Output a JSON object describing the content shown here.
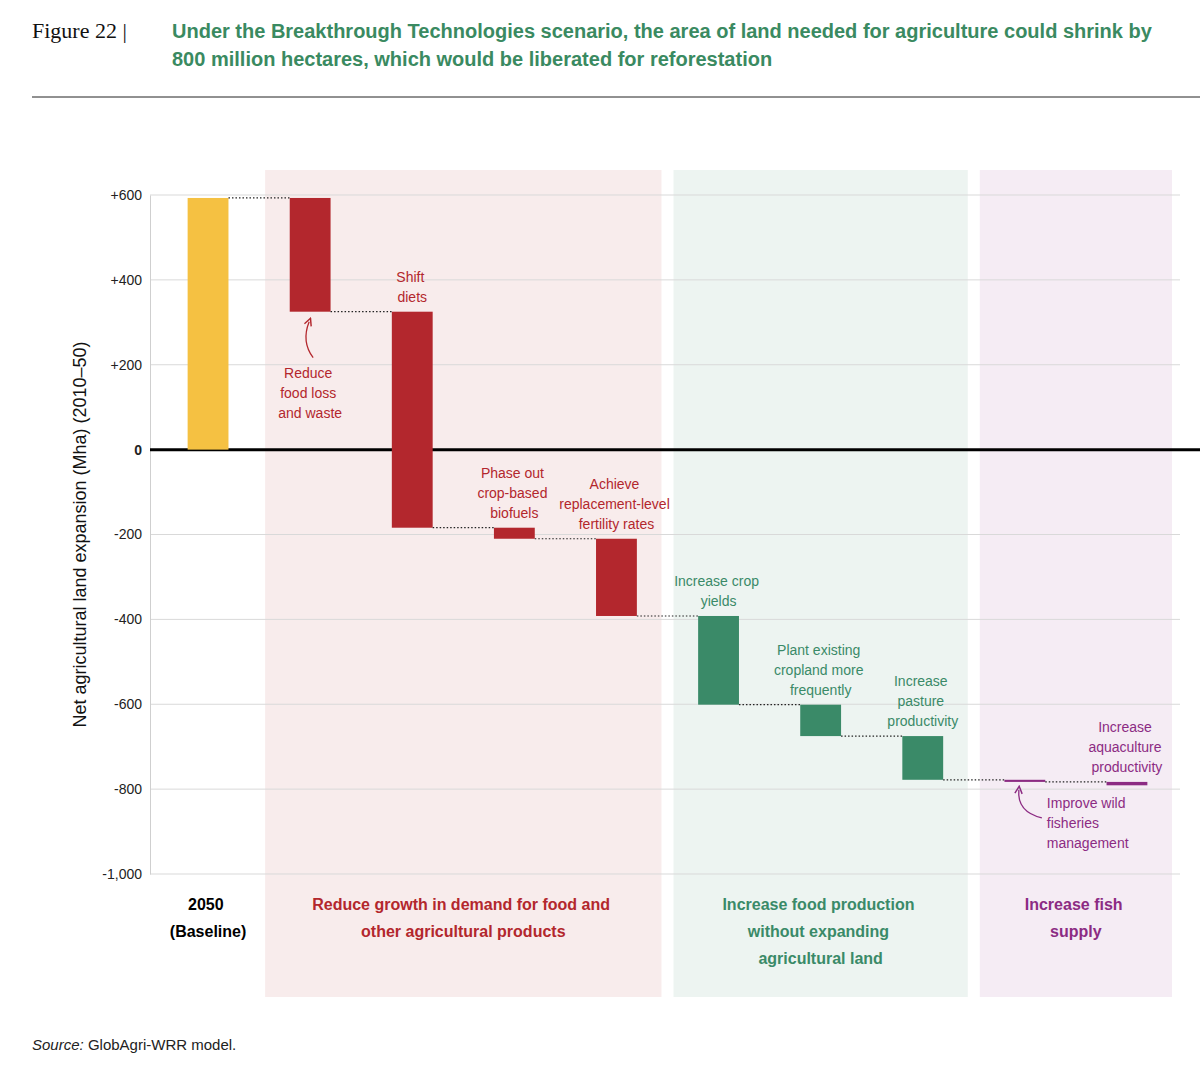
{
  "chart_data": {
    "type": "waterfall",
    "figure_label": "Figure 22 |",
    "title": "Under the Breakthrough Technologies scenario, the area of land needed for agriculture could shrink by 800 million hectares, which would be liberated for reforestation",
    "ylabel": "Net agricultural land expansion (Mha) (2010–50)",
    "categories": [
      "2050 (Baseline)",
      "Reduce food loss and waste",
      "Shift diets",
      "Phase out crop-based biofuels",
      "Achieve replacement-level fertility rates",
      "Increase crop yields",
      "Plant existing cropland more frequently",
      "Increase pasture productivity",
      "Improve wild fisheries management",
      "Increase aquaculture productivity"
    ],
    "values": [
      593,
      -268,
      -509,
      -26,
      -182,
      -209,
      -74,
      -103,
      -5,
      -8
    ],
    "colors": [
      "#f5c142",
      "#b3272d",
      "#b3272d",
      "#b3272d",
      "#b3272d",
      "#3a8a68",
      "#3a8a68",
      "#3a8a68",
      "#8c2b83",
      "#8c2b83"
    ],
    "groups": [
      {
        "label": "Reduce growth in demand for food and other agricultural products",
        "color": "#b3272d",
        "categories": [
          "Reduce food loss and waste",
          "Shift diets",
          "Phase out crop-based biofuels",
          "Achieve replacement-level fertility rates"
        ]
      },
      {
        "label": "Increase food production without expanding agricultural land",
        "color": "#3a8a68",
        "categories": [
          "Increase crop yields",
          "Plant existing cropland more frequently",
          "Increase pasture productivity"
        ]
      },
      {
        "label": "Increase fish supply",
        "color": "#8c2b83",
        "categories": [
          "Improve wild fisheries management",
          "Increase aquaculture productivity"
        ]
      }
    ],
    "ylim": [
      -1000,
      600
    ],
    "yticks": [
      {
        "value": 600,
        "label": "+600"
      },
      {
        "value": 400,
        "label": "+400"
      },
      {
        "value": 200,
        "label": "+200"
      },
      0,
      -200,
      -400,
      -600,
      -800,
      {
        "value": -1000,
        "label": "-1,000"
      }
    ],
    "grid": true,
    "source": "Source: GlobAgri-WRR model."
  }
}
